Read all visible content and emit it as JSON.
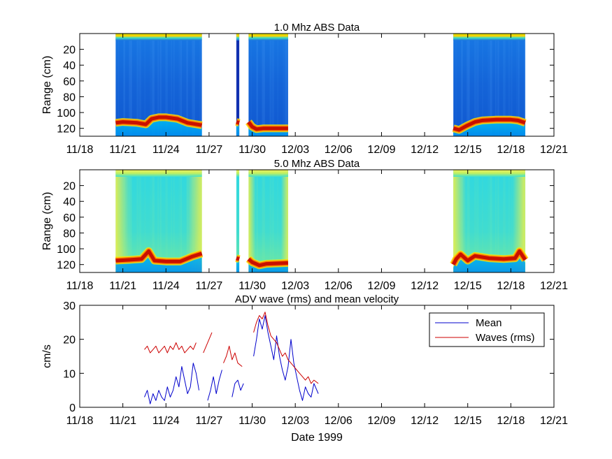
{
  "chart_data": [
    {
      "type": "heatmap",
      "title": "1.0 Mhz ABS Data",
      "xlabel": "",
      "ylabel": "Range (cm)",
      "x_ticks": [
        "11/18",
        "11/21",
        "11/24",
        "11/27",
        "11/30",
        "12/03",
        "12/06",
        "12/09",
        "12/12",
        "12/15",
        "12/18",
        "12/21"
      ],
      "y_ticks": [
        "20",
        "40",
        "60",
        "80",
        "100",
        "120"
      ],
      "y_tick_values": [
        20,
        40,
        60,
        80,
        100,
        120
      ],
      "xlim_days": [
        0,
        33
      ],
      "ylim": [
        0,
        130
      ],
      "y_reversed": true,
      "colormap": "jet",
      "background_color": "#1560d8",
      "bottom_color": "#c81000",
      "data_segments_days": [
        [
          2.5,
          8.5
        ],
        [
          10.9,
          11.1
        ],
        [
          11.75,
          14.5
        ],
        [
          26.0,
          31.0
        ]
      ],
      "bottom_range_profile_cm": [
        [
          2.5,
          113
        ],
        [
          3.0,
          112
        ],
        [
          4.0,
          113
        ],
        [
          4.6,
          115
        ],
        [
          5.0,
          108
        ],
        [
          5.5,
          106
        ],
        [
          6.0,
          106
        ],
        [
          6.8,
          108
        ],
        [
          7.5,
          113
        ],
        [
          8.5,
          116
        ],
        [
          10.9,
          112
        ],
        [
          11.1,
          113
        ],
        [
          11.75,
          112
        ],
        [
          12.0,
          118
        ],
        [
          12.3,
          121
        ],
        [
          12.8,
          120
        ],
        [
          13.5,
          120
        ],
        [
          14.5,
          120
        ],
        [
          26.0,
          120
        ],
        [
          26.4,
          122
        ],
        [
          26.9,
          117
        ],
        [
          27.5,
          112
        ],
        [
          28.0,
          110
        ],
        [
          29.0,
          109
        ],
        [
          30.0,
          109
        ],
        [
          30.5,
          110
        ],
        [
          31.0,
          113
        ]
      ]
    },
    {
      "type": "heatmap",
      "title": "5.0 Mhz ABS Data",
      "xlabel": "",
      "ylabel": "Range (cm)",
      "x_ticks": [
        "11/18",
        "11/21",
        "11/24",
        "11/27",
        "11/30",
        "12/03",
        "12/06",
        "12/09",
        "12/12",
        "12/15",
        "12/18",
        "12/21"
      ],
      "y_ticks": [
        "20",
        "40",
        "60",
        "80",
        "100",
        "120"
      ],
      "y_tick_values": [
        20,
        40,
        60,
        80,
        100,
        120
      ],
      "xlim_days": [
        0,
        33
      ],
      "ylim": [
        0,
        130
      ],
      "y_reversed": true,
      "colormap": "jet",
      "background_color": "#20d0e0",
      "bottom_color": "#c81000",
      "data_segments_days": [
        [
          2.5,
          8.5
        ],
        [
          10.9,
          11.1
        ],
        [
          11.75,
          14.5
        ],
        [
          26.0,
          31.0
        ]
      ],
      "bottom_range_profile_cm": [
        [
          2.5,
          115
        ],
        [
          3.5,
          114
        ],
        [
          4.3,
          113
        ],
        [
          4.8,
          103
        ],
        [
          5.2,
          115
        ],
        [
          6.0,
          116
        ],
        [
          7.0,
          116
        ],
        [
          7.8,
          110
        ],
        [
          8.5,
          106
        ],
        [
          10.9,
          112
        ],
        [
          11.1,
          113
        ],
        [
          11.75,
          113
        ],
        [
          12.0,
          117
        ],
        [
          12.5,
          121
        ],
        [
          13.0,
          119
        ],
        [
          14.5,
          118
        ],
        [
          26.0,
          120
        ],
        [
          26.2,
          113
        ],
        [
          26.5,
          107
        ],
        [
          27.0,
          115
        ],
        [
          27.5,
          109
        ],
        [
          28.5,
          112
        ],
        [
          29.5,
          113
        ],
        [
          30.3,
          112
        ],
        [
          30.6,
          103
        ],
        [
          31.0,
          114
        ]
      ]
    },
    {
      "type": "line",
      "title": "ADV wave (rms) and mean velocity",
      "xlabel": "Date 1999",
      "ylabel": "cm/s",
      "x_ticks": [
        "11/18",
        "11/21",
        "11/24",
        "11/27",
        "11/30",
        "12/03",
        "12/06",
        "12/09",
        "12/12",
        "12/15",
        "12/18",
        "12/21"
      ],
      "y_ticks": [
        "0",
        "10",
        "20",
        "30"
      ],
      "y_tick_values": [
        0,
        10,
        20,
        30
      ],
      "xlim_days": [
        0,
        33
      ],
      "ylim": [
        0,
        30
      ],
      "legend_position": "top-right",
      "series": [
        {
          "name": "Mean",
          "color": "#0000cc",
          "segments": [
            [
              [
                4.5,
                3
              ],
              [
                4.7,
                5
              ],
              [
                4.9,
                1
              ],
              [
                5.1,
                4
              ],
              [
                5.3,
                2
              ],
              [
                5.5,
                5
              ],
              [
                5.7,
                3
              ],
              [
                5.9,
                2
              ],
              [
                6.1,
                6
              ],
              [
                6.3,
                3
              ],
              [
                6.5,
                5
              ],
              [
                6.7,
                9
              ],
              [
                6.9,
                6
              ],
              [
                7.1,
                12
              ],
              [
                7.3,
                8
              ],
              [
                7.5,
                4
              ],
              [
                7.7,
                6
              ],
              [
                7.9,
                13
              ],
              [
                8.1,
                10
              ],
              [
                8.3,
                5
              ]
            ],
            [
              [
                8.9,
                2
              ],
              [
                9.1,
                5
              ],
              [
                9.3,
                9
              ],
              [
                9.5,
                4
              ],
              [
                9.7,
                8
              ],
              [
                9.9,
                11
              ]
            ],
            [
              [
                10.6,
                3
              ],
              [
                10.8,
                7
              ],
              [
                11.0,
                8
              ],
              [
                11.2,
                5
              ],
              [
                11.4,
                7
              ]
            ],
            [
              [
                12.1,
                15
              ],
              [
                12.3,
                20
              ],
              [
                12.5,
                26
              ],
              [
                12.7,
                23
              ],
              [
                12.9,
                27
              ],
              [
                13.1,
                22
              ],
              [
                13.3,
                18
              ],
              [
                13.5,
                14
              ],
              [
                13.7,
                21
              ],
              [
                13.9,
                15
              ],
              [
                14.1,
                11
              ],
              [
                14.3,
                8
              ],
              [
                14.5,
                12
              ],
              [
                14.7,
                20
              ],
              [
                14.9,
                13
              ],
              [
                15.1,
                9
              ],
              [
                15.3,
                5
              ],
              [
                15.5,
                2
              ],
              [
                15.7,
                6
              ],
              [
                15.9,
                4
              ],
              [
                16.1,
                3
              ],
              [
                16.3,
                7
              ],
              [
                16.6,
                4
              ]
            ]
          ]
        },
        {
          "name": "Waves (rms)",
          "color": "#cc0000",
          "segments": [
            [
              [
                4.5,
                17
              ],
              [
                4.7,
                18
              ],
              [
                4.9,
                16
              ],
              [
                5.1,
                17
              ],
              [
                5.3,
                18
              ],
              [
                5.5,
                16
              ],
              [
                5.7,
                17
              ],
              [
                5.9,
                18
              ],
              [
                6.1,
                16
              ],
              [
                6.3,
                18
              ],
              [
                6.5,
                17
              ],
              [
                6.7,
                19
              ],
              [
                6.9,
                17
              ],
              [
                7.1,
                18
              ],
              [
                7.3,
                16
              ],
              [
                7.5,
                17
              ],
              [
                7.7,
                18
              ],
              [
                7.9,
                17
              ],
              [
                8.1,
                19
              ]
            ],
            [
              [
                8.6,
                16
              ],
              [
                8.8,
                18
              ],
              [
                9.0,
                20
              ],
              [
                9.2,
                22
              ]
            ],
            [
              [
                10.0,
                13
              ],
              [
                10.2,
                15
              ],
              [
                10.4,
                18
              ],
              [
                10.6,
                14
              ],
              [
                10.8,
                16
              ],
              [
                11.0,
                13
              ],
              [
                11.3,
                12
              ]
            ],
            [
              [
                12.1,
                22
              ],
              [
                12.3,
                25
              ],
              [
                12.5,
                27
              ],
              [
                12.7,
                26
              ],
              [
                12.9,
                28
              ],
              [
                13.1,
                24
              ],
              [
                13.3,
                21
              ],
              [
                13.5,
                20
              ],
              [
                13.7,
                19
              ],
              [
                13.9,
                17
              ],
              [
                14.1,
                15
              ],
              [
                14.3,
                16
              ],
              [
                14.5,
                14
              ],
              [
                14.7,
                13
              ],
              [
                14.9,
                12
              ],
              [
                15.1,
                11
              ],
              [
                15.3,
                10
              ],
              [
                15.5,
                9
              ],
              [
                15.7,
                8
              ],
              [
                15.9,
                9
              ],
              [
                16.1,
                7
              ],
              [
                16.3,
                8
              ],
              [
                16.6,
                7
              ]
            ]
          ]
        }
      ]
    }
  ]
}
